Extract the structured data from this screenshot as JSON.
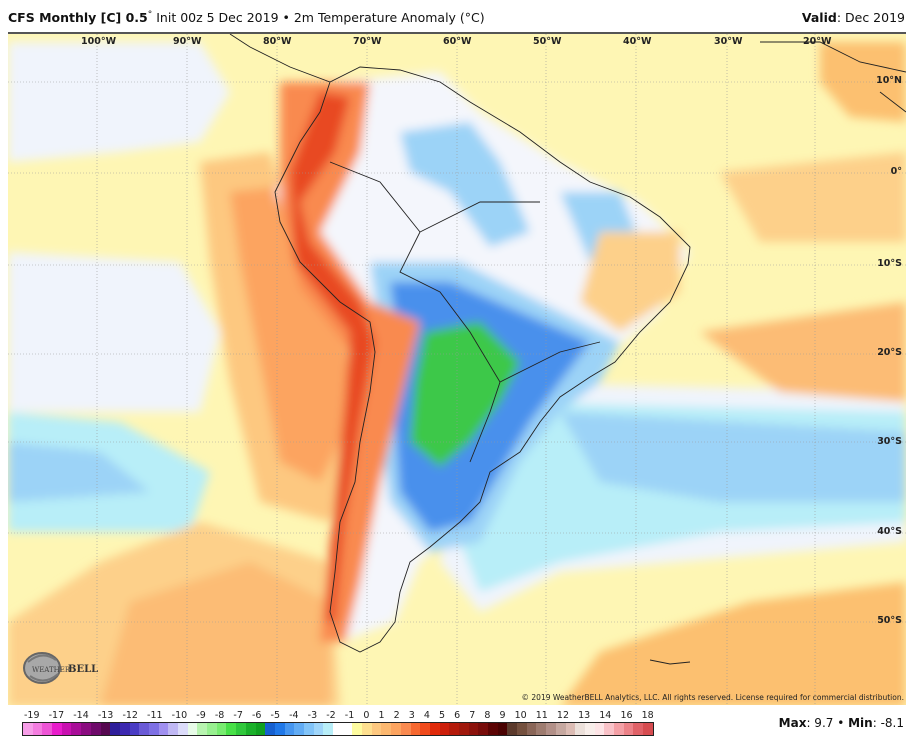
{
  "header": {
    "model": "CFS Monthly [C] 0.5",
    "degree": "°",
    "description": "Init 00z 5 Dec 2019 • 2m Temperature Anomaly (°C)",
    "valid_label": "Valid",
    "valid_value": ": Dec 2019"
  },
  "map": {
    "longitude_labels": [
      "100°W",
      "90°W",
      "80°W",
      "70°W",
      "60°W",
      "50°W",
      "40°W",
      "30°W",
      "20°W"
    ],
    "latitude_labels": [
      "10°N",
      "0°",
      "10°S",
      "20°S",
      "30°S",
      "40°S",
      "50°S"
    ],
    "copyright": "© 2019 WeatherBELL Analytics, LLC. All rights reserved. License required for commercial distribution.",
    "logo_text": "WeatherBELL Analytics LLC"
  },
  "colorbar": {
    "labels": [
      "-19",
      "-17",
      "-14",
      "-13",
      "-12",
      "-11",
      "-10",
      "-9",
      "-8",
      "-7",
      "-6",
      "-5",
      "-4",
      "-3",
      "-2",
      "-1",
      "0",
      "1",
      "2",
      "3",
      "4",
      "5",
      "6",
      "7",
      "8",
      "9",
      "10",
      "11",
      "12",
      "13",
      "14",
      "16",
      "18"
    ],
    "colors": [
      "#f79ee8",
      "#f47de0",
      "#ee55d6",
      "#e81ccb",
      "#c810b0",
      "#a80d98",
      "#8a0c80",
      "#6e0a6a",
      "#560850",
      "#2e1e9a",
      "#3c28b0",
      "#4a3cc4",
      "#6a5ad6",
      "#7e70e4",
      "#a090f0",
      "#c0b8f4",
      "#dcdcfa",
      "#e8fce8",
      "#b8f4b0",
      "#98f090",
      "#78ec70",
      "#48e048",
      "#30c83c",
      "#1ab02a",
      "#10a020",
      "#1660d0",
      "#2078e8",
      "#4696f0",
      "#62acf4",
      "#82c4f8",
      "#a0d6fa",
      "#b8eef8",
      "#ffffff",
      "#ffffff",
      "#fefca0",
      "#fee090",
      "#fdc880",
      "#fcb870",
      "#fca460",
      "#f98a50",
      "#f66830",
      "#f04a1c",
      "#e02a0a",
      "#cc1e0a",
      "#b41a0a",
      "#a0180c",
      "#8c120c",
      "#780c0a",
      "#5c0404",
      "#4a0202",
      "#5c3a2c",
      "#74503e",
      "#8a6658",
      "#9e7c70",
      "#b29088",
      "#c6a8a0",
      "#dcbcb4",
      "#ece0da",
      "#f8eeea",
      "#fde4e6",
      "#f9c2c8",
      "#f4a0a6",
      "#ec8288",
      "#e06268",
      "#d64c50"
    ]
  },
  "stats": {
    "max_label": "Max",
    "max_value": ": 9.7 • ",
    "min_label": "Min",
    "min_value": ": -8.1"
  }
}
